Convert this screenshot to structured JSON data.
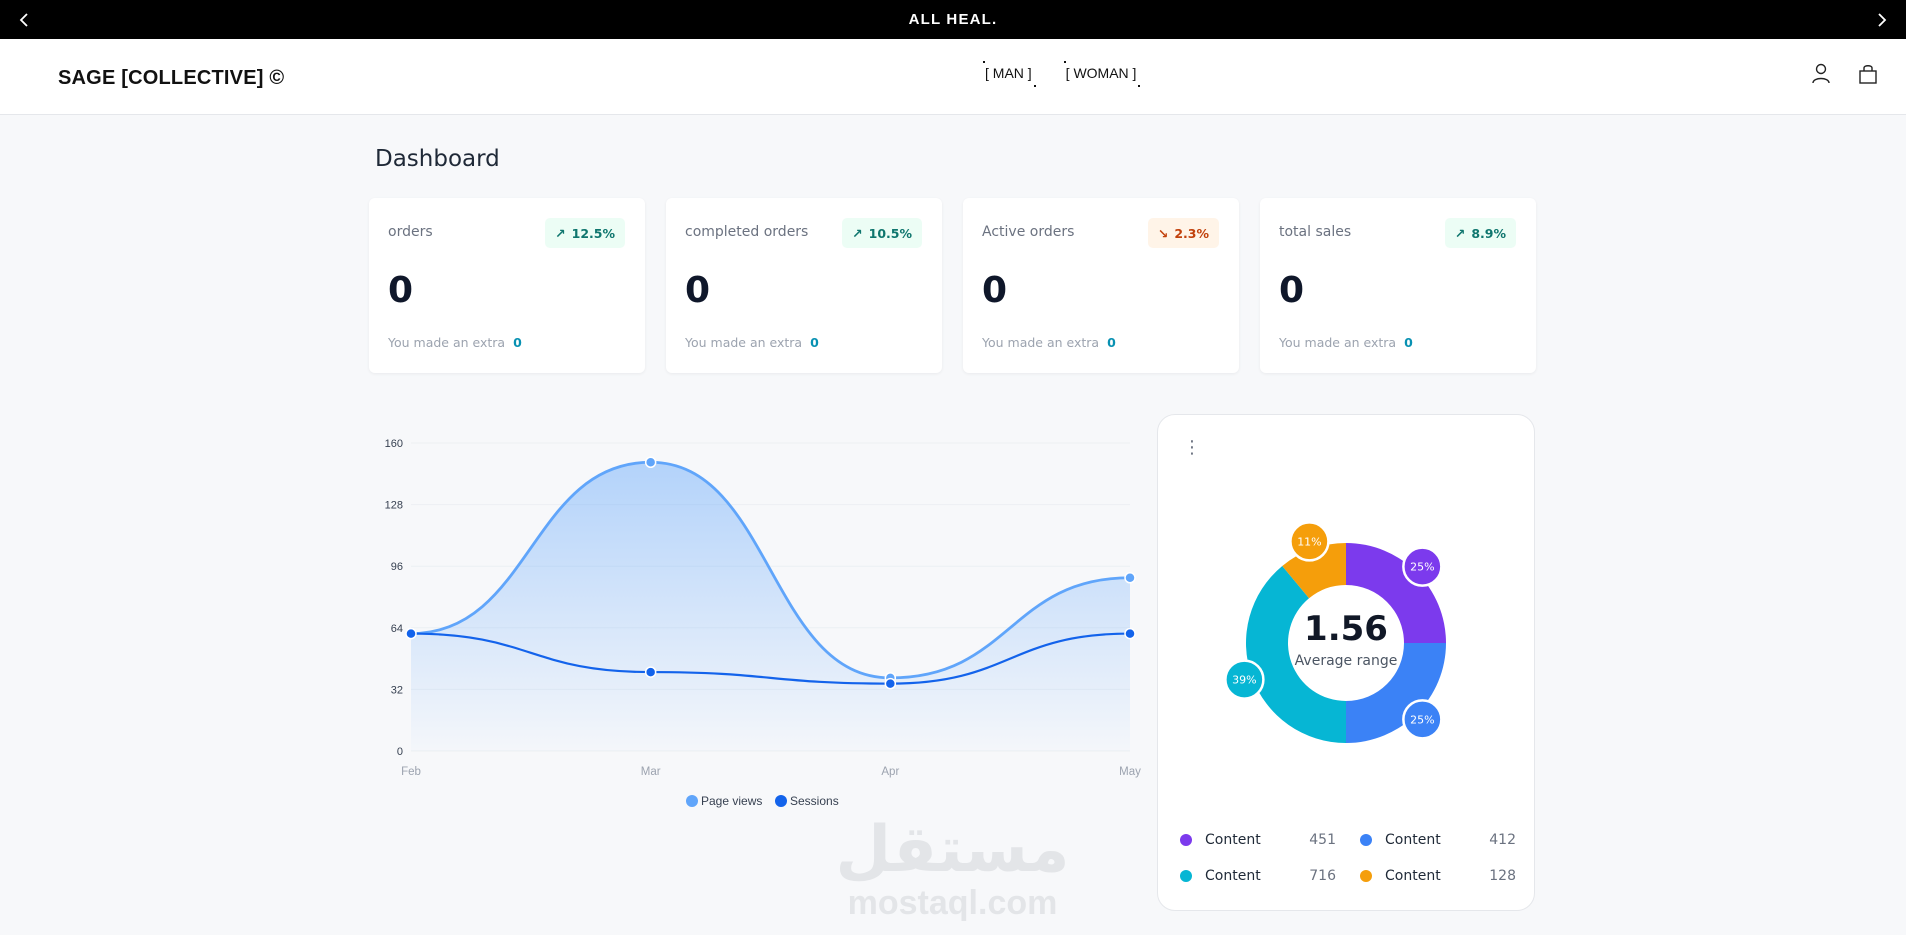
{
  "announcement": {
    "text": "ALL HEAL."
  },
  "brand": {
    "logo": "SAGE [COLLECTIVE] ©"
  },
  "nav": {
    "items": [
      "[ MAN ]",
      "[ WOMAN ]"
    ]
  },
  "header_icons": [
    "user-icon",
    "shopping-bag-icon"
  ],
  "dashboard": {
    "title": "Dashboard",
    "stats": [
      {
        "label": "orders",
        "trend": "↗",
        "change": "12.5%",
        "direction": "up",
        "value": "0",
        "foot_text": "You made an extra",
        "foot_value": "0"
      },
      {
        "label": "completed orders",
        "trend": "↗",
        "change": "10.5%",
        "direction": "up",
        "value": "0",
        "foot_text": "You made an extra",
        "foot_value": "0"
      },
      {
        "label": "Active orders",
        "trend": "↘",
        "change": "2.3%",
        "direction": "down",
        "value": "0",
        "foot_text": "You made an extra",
        "foot_value": "0"
      },
      {
        "label": "total sales",
        "trend": "↗",
        "change": "8.9%",
        "direction": "up",
        "value": "0",
        "foot_text": "You made an extra",
        "foot_value": "0"
      }
    ]
  },
  "chart_data": [
    {
      "type": "area",
      "title": "",
      "xlabel": "",
      "ylabel": "",
      "categories": [
        "Feb",
        "Mar",
        "Apr",
        "May"
      ],
      "ylim": [
        0,
        160
      ],
      "yticks": [
        0,
        32,
        64,
        96,
        128,
        160
      ],
      "grid": true,
      "legend": "bottom",
      "series": [
        {
          "name": "Page views",
          "values": [
            61,
            150,
            38,
            90
          ],
          "color": "#60a5fa"
        },
        {
          "name": "Sessions",
          "values": [
            61,
            41,
            35,
            61
          ],
          "color": "#1363eb"
        }
      ]
    },
    {
      "type": "pie",
      "center_value": "1.56",
      "center_label": "Average range",
      "slices": [
        {
          "label": "25%",
          "value": 25,
          "color": "#7c3aed"
        },
        {
          "label": "25%",
          "value": 25,
          "color": "#3b82f6"
        },
        {
          "label": "39%",
          "value": 39,
          "color": "#06b6d4"
        },
        {
          "label": "11%",
          "value": 11,
          "color": "#f59e0b"
        }
      ],
      "legend": [
        {
          "name": "Content",
          "value": "451",
          "color": "#7c3aed"
        },
        {
          "name": "Content",
          "value": "412",
          "color": "#3b82f6"
        },
        {
          "name": "Content",
          "value": "716",
          "color": "#06b6d4"
        },
        {
          "name": "Content",
          "value": "128",
          "color": "#f59e0b"
        }
      ]
    }
  ],
  "watermark": {
    "arabic": "مستقل",
    "latin": "mostaql.com"
  }
}
